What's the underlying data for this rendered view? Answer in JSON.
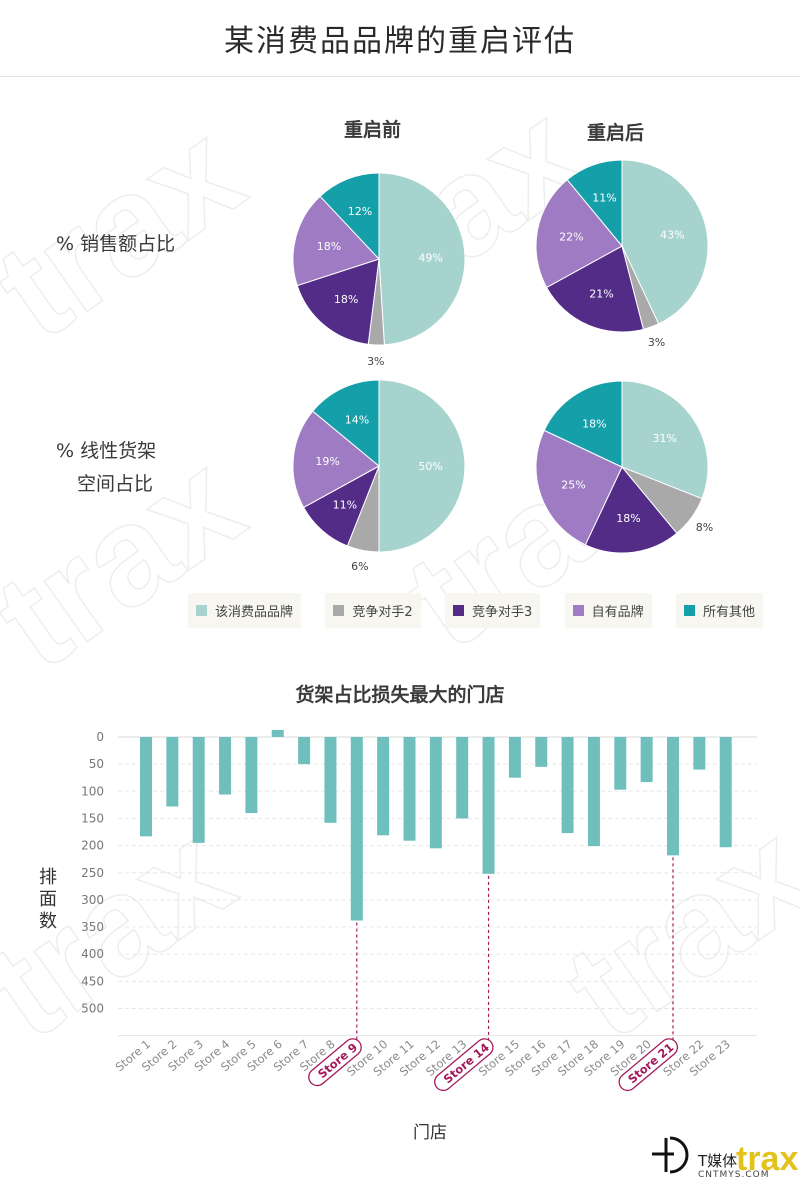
{
  "header": {
    "title": "某消费品品牌的重启评估"
  },
  "watermark": {
    "text": "trax"
  },
  "pies": {
    "col_before": "重启前",
    "col_after": "重启后",
    "row_sales": "% 销售额占比",
    "row_shelf_line1": "% 线性货架",
    "row_shelf_line2": "空间占比"
  },
  "legend": [
    {
      "label": "该消费品品牌",
      "color": "#a7d3cf"
    },
    {
      "label": "竞争对手2",
      "color": "#a9a9a9"
    },
    {
      "label": "竞争对手3",
      "color": "#522c86"
    },
    {
      "label": "自有品牌",
      "color": "#9e7bc2"
    },
    {
      "label": "所有其他",
      "color": "#15a0a9"
    }
  ],
  "bar_chart": {
    "title": "货架占比损失最大的门店",
    "ylabel": "排面数",
    "xlabel": "门店"
  },
  "footer": {
    "brand": "T媒体",
    "sub": "CNTMYS.COM",
    "logo": "trax"
  },
  "chart_data": [
    {
      "type": "pie",
      "title": "重启前",
      "row": "% 销售额占比",
      "labels": [
        "该消费品品牌",
        "竞争对手2",
        "竞争对手3",
        "自有品牌",
        "所有其他"
      ],
      "values": [
        49,
        3,
        18,
        18,
        12
      ],
      "value_labels": [
        "49%",
        "3%",
        "18%",
        "18%",
        "12%"
      ]
    },
    {
      "type": "pie",
      "title": "重启后",
      "row": "% 销售额占比",
      "labels": [
        "该消费品品牌",
        "竞争对手2",
        "竞争对手3",
        "自有品牌",
        "所有其他"
      ],
      "values": [
        43,
        3,
        21,
        22,
        11
      ],
      "value_labels": [
        "43%",
        "3%",
        "21%",
        "22%",
        "11%"
      ]
    },
    {
      "type": "pie",
      "title": "重启前",
      "row": "% 线性货架 空间占比",
      "labels": [
        "该消费品品牌",
        "竞争对手2",
        "竞争对手3",
        "自有品牌",
        "所有其他"
      ],
      "values": [
        50,
        6,
        11,
        19,
        14
      ],
      "value_labels": [
        "50%",
        "6%",
        "11%",
        "19%",
        "14%"
      ]
    },
    {
      "type": "pie",
      "title": "重启后",
      "row": "% 线性货架 空间占比",
      "labels": [
        "该消费品品牌",
        "竞争对手2",
        "竞争对手3",
        "自有品牌",
        "所有其他"
      ],
      "values": [
        31,
        8,
        18,
        25,
        18
      ],
      "value_labels": [
        "31%",
        "8%",
        "18%",
        "25%",
        "18%"
      ]
    },
    {
      "type": "bar",
      "title": "货架占比损失最大的门店",
      "xlabel": "门店",
      "ylabel": "排面数",
      "categories": [
        "Store 1",
        "Store 2",
        "Store 3",
        "Store 4",
        "Store 5",
        "Store 6",
        "Store 7",
        "Store 8",
        "Store 9",
        "Store 10",
        "Store 11",
        "Store 12",
        "Store 13",
        "Store 14",
        "Store 15",
        "Store 16",
        "Store 17",
        "Store 18",
        "Store 19",
        "Store 20",
        "Store 21",
        "Store 22",
        "Store 23"
      ],
      "values": [
        183,
        128,
        195,
        106,
        140,
        -13,
        50,
        158,
        338,
        181,
        191,
        205,
        150,
        252,
        75,
        55,
        177,
        201,
        97,
        83,
        218,
        60,
        203
      ],
      "highlighted": [
        "Store 9",
        "Store 14",
        "Store 21"
      ],
      "yticks": [
        0,
        50,
        100,
        150,
        200,
        250,
        300,
        350,
        400,
        450,
        500
      ],
      "ylim": [
        -15,
        550
      ],
      "y_inverted": true,
      "bar_color": "#6fc0bd",
      "highlight_color": "#a3195b",
      "grid": true
    }
  ]
}
